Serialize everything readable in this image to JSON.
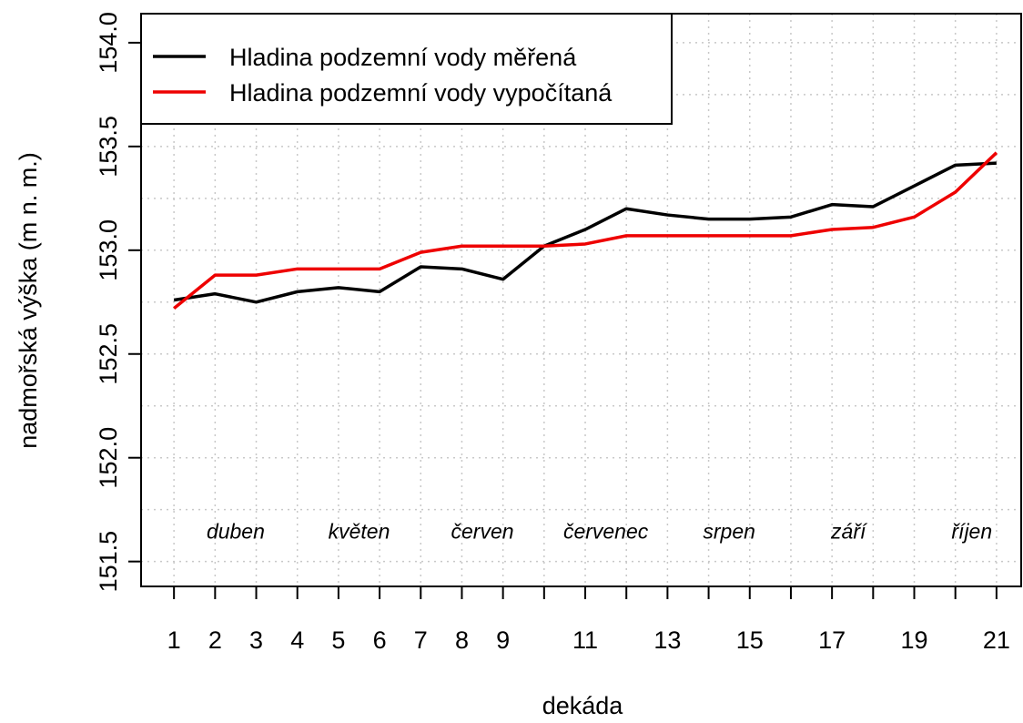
{
  "chart_data": {
    "type": "line",
    "x_label": "dekáda",
    "y_label": "nadmořská výška (m n. m.)",
    "x": [
      1,
      2,
      3,
      4,
      5,
      6,
      7,
      8,
      9,
      10,
      11,
      12,
      13,
      14,
      15,
      16,
      17,
      18,
      19,
      20,
      21
    ],
    "series": [
      {
        "name": "Hladina podzemní vody měřená",
        "color": "#000000",
        "values": [
          152.76,
          152.79,
          152.75,
          152.8,
          152.82,
          152.8,
          152.92,
          152.91,
          152.86,
          153.02,
          153.1,
          153.2,
          153.17,
          153.15,
          153.15,
          153.16,
          153.22,
          153.21,
          153.31,
          153.41,
          153.42
        ]
      },
      {
        "name": "Hladina podzemní vody vypočítaná",
        "color": "#ee0000",
        "values": [
          152.72,
          152.88,
          152.88,
          152.91,
          152.91,
          152.91,
          152.99,
          153.02,
          153.02,
          153.02,
          153.03,
          153.07,
          153.07,
          153.07,
          153.07,
          153.07,
          153.1,
          153.11,
          153.16,
          153.28,
          153.47
        ]
      }
    ],
    "annotations": [
      {
        "text": "duben",
        "x": 2.5,
        "y": 151.65
      },
      {
        "text": "květen",
        "x": 5.5,
        "y": 151.65
      },
      {
        "text": "červen",
        "x": 8.5,
        "y": 151.65
      },
      {
        "text": "červenec",
        "x": 11.5,
        "y": 151.65
      },
      {
        "text": "srpen",
        "x": 14.5,
        "y": 151.65
      },
      {
        "text": "září",
        "x": 17.4,
        "y": 151.65
      },
      {
        "text": "říjen",
        "x": 20.4,
        "y": 151.65
      }
    ],
    "xlim": [
      0.2,
      21.6
    ],
    "ylim": [
      151.38,
      154.14
    ],
    "xticks": [
      1,
      2,
      3,
      4,
      5,
      6,
      7,
      8,
      9,
      11,
      13,
      15,
      17,
      19,
      21
    ],
    "xminor_ticks": [
      10,
      12,
      14,
      16,
      18,
      20
    ],
    "yticks": [
      {
        "value": 151.5,
        "label": "151.5"
      },
      {
        "value": 152,
        "label": "152.0"
      },
      {
        "value": 152.5,
        "label": "152.5"
      },
      {
        "value": 153,
        "label": "153.0"
      },
      {
        "value": 153.5,
        "label": "153.5"
      },
      {
        "value": 154,
        "label": "154.0"
      }
    ],
    "ygrid": [
      151.5,
      151.75,
      152,
      152.25,
      152.5,
      152.75,
      153,
      153.25,
      153.5,
      153.75,
      154
    ],
    "grid": true,
    "legend": "top-left"
  }
}
